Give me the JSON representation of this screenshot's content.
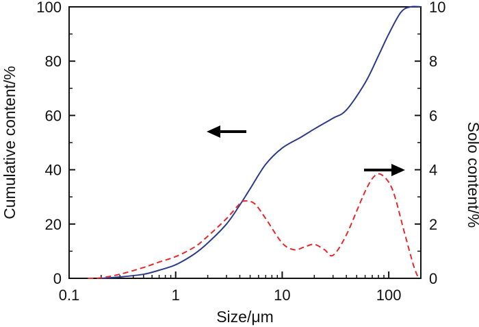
{
  "chart_data": {
    "type": "line",
    "xscale": "log",
    "xlabel": "Size/μm",
    "ylabel_left": "Cumulative content/%",
    "ylabel_right": "Solo content/%",
    "xlim": [
      0.1,
      200
    ],
    "ylim_left": [
      0,
      100
    ],
    "ylim_right": [
      0,
      10
    ],
    "x_ticks": [
      0.1,
      1,
      10,
      100
    ],
    "x_tick_labels": [
      "0.1",
      "1",
      "10",
      "100"
    ],
    "y_left_ticks": [
      0,
      20,
      40,
      60,
      80,
      100
    ],
    "y_left_tick_labels": [
      "0",
      "20",
      "40",
      "60",
      "80",
      "100"
    ],
    "y_right_ticks": [
      0,
      2,
      4,
      6,
      8,
      10
    ],
    "y_right_tick_labels": [
      "0",
      "2",
      "4",
      "6",
      "8",
      "10"
    ],
    "series": [
      {
        "name": "Cumulative content",
        "axis": "left",
        "style": "solid",
        "color": "#2b3a8c",
        "x": [
          0.2,
          0.3,
          0.5,
          0.7,
          1,
          1.5,
          2,
          3,
          4,
          5,
          7,
          10,
          15,
          20,
          30,
          40,
          60,
          80,
          100,
          130,
          160,
          200
        ],
        "y": [
          0,
          0.5,
          1.5,
          3,
          5,
          9,
          13,
          20,
          27,
          33,
          42,
          48,
          52,
          55,
          59,
          62,
          72,
          82,
          90,
          98,
          100,
          100
        ]
      },
      {
        "name": "Solo content",
        "axis": "right",
        "style": "dashed",
        "color": "#e8282b",
        "x": [
          0.15,
          0.2,
          0.3,
          0.5,
          0.7,
          1,
          1.5,
          2,
          3,
          4,
          4.5,
          5.5,
          7,
          10,
          13,
          16,
          20,
          25,
          30,
          40,
          60,
          75,
          90,
          110,
          140,
          170,
          190
        ],
        "y": [
          0,
          0.02,
          0.15,
          0.4,
          0.6,
          0.8,
          1.15,
          1.55,
          2.2,
          2.75,
          2.85,
          2.75,
          2.2,
          1.3,
          1.05,
          1.15,
          1.25,
          1.05,
          0.85,
          1.6,
          3.2,
          3.8,
          3.75,
          3.2,
          1.7,
          0.5,
          0
        ]
      }
    ],
    "annotations": [
      {
        "type": "arrow",
        "direction": "left",
        "label": "points to left axis",
        "series": "Cumulative content"
      },
      {
        "type": "arrow",
        "direction": "right",
        "label": "points to right axis",
        "series": "Solo content"
      }
    ]
  }
}
